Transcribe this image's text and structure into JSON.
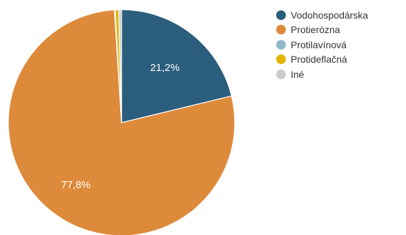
{
  "chart_data": {
    "type": "pie",
    "categories": [
      "Vodohospodárska",
      "Protierózna",
      "Protilavínová",
      "Protideflačná",
      "Iné"
    ],
    "values": [
      21.2,
      77.8,
      0.1,
      0.5,
      0.4
    ],
    "colors": [
      "#2b5d7c",
      "#de8a3b",
      "#93b7c9",
      "#e3b505",
      "#cccccc"
    ],
    "data_labels": [
      "21,2%",
      "77,8%",
      "",
      "",
      ""
    ],
    "legend_position": "top-right"
  }
}
